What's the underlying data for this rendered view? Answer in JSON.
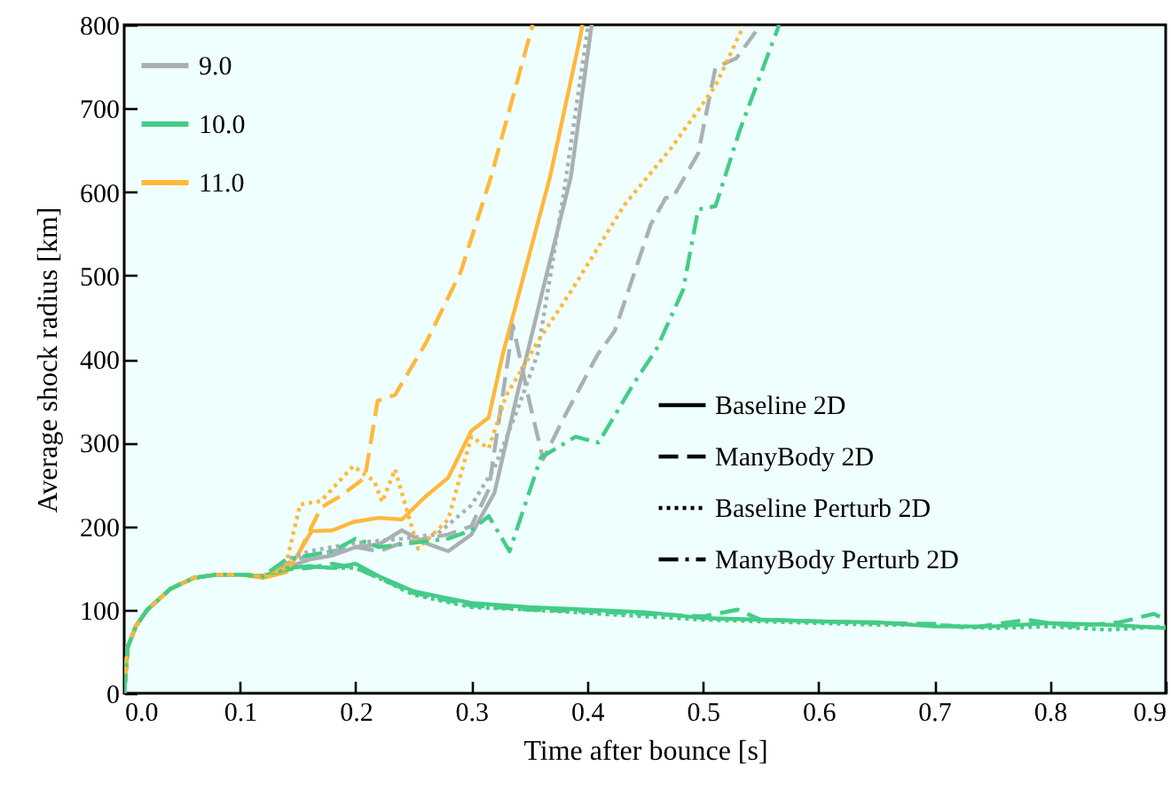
{
  "chart_data": {
    "type": "line",
    "xlabel": "Time after bounce [s]",
    "ylabel": "Average shock radius [km]",
    "xlim": [
      0,
      0.9
    ],
    "xticks": [
      {
        "value": 0,
        "label": "0.0"
      },
      0.1,
      0.2,
      0.3,
      0.4,
      0.5,
      0.6,
      0.7,
      0.8,
      0.9
    ],
    "ylim": [
      0,
      800
    ],
    "yticks": [
      0,
      100,
      200,
      300,
      400,
      500,
      600,
      700,
      800
    ],
    "grid": false,
    "legend": "top left",
    "annotations": [
      "Baseline 2D",
      "ManyBody 2D",
      "Baseline Perturb 2D",
      "ManyBody Perturb 2D"
    ],
    "series": [
      {
        "name": "9.0",
        "color": "#a9b0b3",
        "line_style": "solid",
        "x": [
          0,
          0.003,
          0.01,
          0.02,
          0.04,
          0.06,
          0.08,
          0.1,
          0.12,
          0.14,
          0.16,
          0.18,
          0.2,
          0.22,
          0.24,
          0.26,
          0.28,
          0.3,
          0.32,
          0.34,
          0.363,
          0.386,
          0.4,
          0.404
        ],
        "values": [
          0,
          55,
          80,
          100,
          125,
          138,
          142,
          142,
          140,
          150,
          160,
          165,
          175,
          178,
          195,
          180,
          170,
          190,
          240,
          360,
          490,
          618,
          760,
          800
        ]
      },
      {
        "name": "10.0",
        "color": "#44cc88",
        "line_style": "solid",
        "x": [
          0,
          0.003,
          0.01,
          0.02,
          0.04,
          0.06,
          0.08,
          0.1,
          0.12,
          0.14,
          0.16,
          0.18,
          0.2,
          0.22,
          0.25,
          0.3,
          0.35,
          0.4,
          0.45,
          0.5,
          0.55,
          0.6,
          0.65,
          0.7,
          0.75,
          0.8,
          0.85,
          0.9
        ],
        "values": [
          0,
          55,
          80,
          100,
          125,
          138,
          142,
          142,
          140,
          150,
          152,
          150,
          155,
          140,
          122,
          108,
          103,
          100,
          97,
          90,
          88,
          86,
          85,
          80,
          80,
          84,
          82,
          78
        ]
      },
      {
        "name": "11.0",
        "color": "#ffb83b",
        "line_style": "solid",
        "x": [
          0,
          0.003,
          0.01,
          0.02,
          0.04,
          0.06,
          0.08,
          0.1,
          0.12,
          0.14,
          0.15,
          0.162,
          0.18,
          0.198,
          0.22,
          0.24,
          0.26,
          0.28,
          0.3,
          0.315,
          0.327,
          0.368,
          0.394,
          0.396
        ],
        "values": [
          0,
          55,
          80,
          100,
          125,
          138,
          142,
          142,
          138,
          145,
          166,
          194,
          195,
          205,
          210,
          208,
          235,
          258,
          314,
          330,
          405,
          618,
          785,
          800
        ]
      },
      {
        "color": "#a9b0b3",
        "line_style": "dashed",
        "x": [
          0,
          0.003,
          0.01,
          0.02,
          0.04,
          0.06,
          0.08,
          0.1,
          0.12,
          0.14,
          0.16,
          0.18,
          0.2,
          0.22,
          0.24,
          0.26,
          0.28,
          0.3,
          0.315,
          0.336,
          0.35,
          0.362,
          0.38,
          0.409,
          0.424,
          0.455,
          0.468,
          0.474,
          0.496,
          0.511,
          0.529,
          0.549
        ],
        "values": [
          0,
          55,
          80,
          100,
          125,
          138,
          142,
          142,
          140,
          155,
          165,
          170,
          175,
          170,
          180,
          185,
          190,
          200,
          244,
          440,
          350,
          280,
          330,
          405,
          434,
          561,
          593,
          593,
          646,
          749,
          760,
          798
        ]
      },
      {
        "color": "#44cc88",
        "line_style": "dashed",
        "x": [
          0,
          0.003,
          0.01,
          0.02,
          0.04,
          0.06,
          0.08,
          0.1,
          0.12,
          0.14,
          0.16,
          0.18,
          0.2,
          0.22,
          0.25,
          0.3,
          0.35,
          0.4,
          0.45,
          0.5,
          0.53,
          0.55,
          0.6,
          0.65,
          0.7,
          0.73,
          0.78,
          0.82,
          0.86,
          0.89,
          0.9
        ],
        "values": [
          0,
          55,
          80,
          100,
          125,
          138,
          142,
          142,
          140,
          148,
          150,
          155,
          150,
          138,
          120,
          105,
          100,
          98,
          95,
          92,
          100,
          88,
          86,
          84,
          83,
          78,
          88,
          80,
          85,
          95,
          88
        ]
      },
      {
        "color": "#ffb83b",
        "line_style": "dashed",
        "x": [
          0,
          0.003,
          0.01,
          0.02,
          0.04,
          0.06,
          0.08,
          0.1,
          0.12,
          0.14,
          0.15,
          0.17,
          0.188,
          0.208,
          0.219,
          0.234,
          0.261,
          0.291,
          0.317,
          0.353
        ],
        "values": [
          0,
          55,
          80,
          100,
          125,
          138,
          142,
          142,
          140,
          150,
          165,
          222,
          237,
          258,
          350,
          357,
          420,
          505,
          618,
          800
        ]
      },
      {
        "color": "#a9b0b3",
        "line_style": "dotted",
        "x": [
          0,
          0.003,
          0.01,
          0.02,
          0.04,
          0.06,
          0.08,
          0.1,
          0.12,
          0.14,
          0.16,
          0.18,
          0.2,
          0.24,
          0.27,
          0.3,
          0.32,
          0.34,
          0.357,
          0.38,
          0.401
        ],
        "values": [
          0,
          55,
          80,
          100,
          125,
          138,
          142,
          142,
          140,
          160,
          170,
          175,
          180,
          185,
          190,
          225,
          270,
          340,
          405,
          600,
          800
        ]
      },
      {
        "color": "#44cc88",
        "line_style": "dotted",
        "x": [
          0,
          0.003,
          0.01,
          0.02,
          0.04,
          0.06,
          0.08,
          0.1,
          0.12,
          0.14,
          0.16,
          0.18,
          0.2,
          0.22,
          0.25,
          0.3,
          0.35,
          0.4,
          0.45,
          0.5,
          0.55,
          0.6,
          0.65,
          0.7,
          0.75,
          0.8,
          0.85,
          0.9
        ],
        "values": [
          0,
          55,
          80,
          100,
          125,
          138,
          142,
          142,
          140,
          150,
          152,
          150,
          150,
          138,
          118,
          103,
          100,
          96,
          92,
          88,
          86,
          84,
          82,
          82,
          78,
          80,
          76,
          80
        ]
      },
      {
        "color": "#ffb83b",
        "line_style": "dotted",
        "x": [
          0,
          0.003,
          0.01,
          0.02,
          0.04,
          0.06,
          0.08,
          0.1,
          0.12,
          0.14,
          0.152,
          0.17,
          0.198,
          0.216,
          0.223,
          0.234,
          0.254,
          0.28,
          0.3,
          0.315,
          0.33,
          0.351,
          0.357,
          0.387,
          0.432,
          0.473,
          0.511,
          0.535
        ],
        "values": [
          0,
          55,
          80,
          100,
          125,
          138,
          142,
          142,
          140,
          155,
          226,
          230,
          272,
          254,
          229,
          268,
          173,
          208,
          307,
          293,
          356,
          405,
          420,
          483,
          584,
          653,
          727,
          798
        ]
      },
      {
        "color": "#44cc88",
        "line_style": "dashdot",
        "x": [
          0,
          0.003,
          0.01,
          0.02,
          0.04,
          0.06,
          0.08,
          0.1,
          0.12,
          0.14,
          0.16,
          0.18,
          0.2,
          0.22,
          0.25,
          0.28,
          0.3,
          0.315,
          0.333,
          0.36,
          0.39,
          0.41,
          0.44,
          0.46,
          0.483,
          0.496,
          0.511,
          0.532,
          0.566
        ],
        "values": [
          0,
          55,
          80,
          100,
          125,
          138,
          142,
          142,
          140,
          160,
          165,
          170,
          185,
          175,
          180,
          185,
          195,
          212,
          170,
          282,
          307,
          300,
          370,
          412,
          483,
          579,
          583,
          674,
          800
        ]
      }
    ]
  }
}
